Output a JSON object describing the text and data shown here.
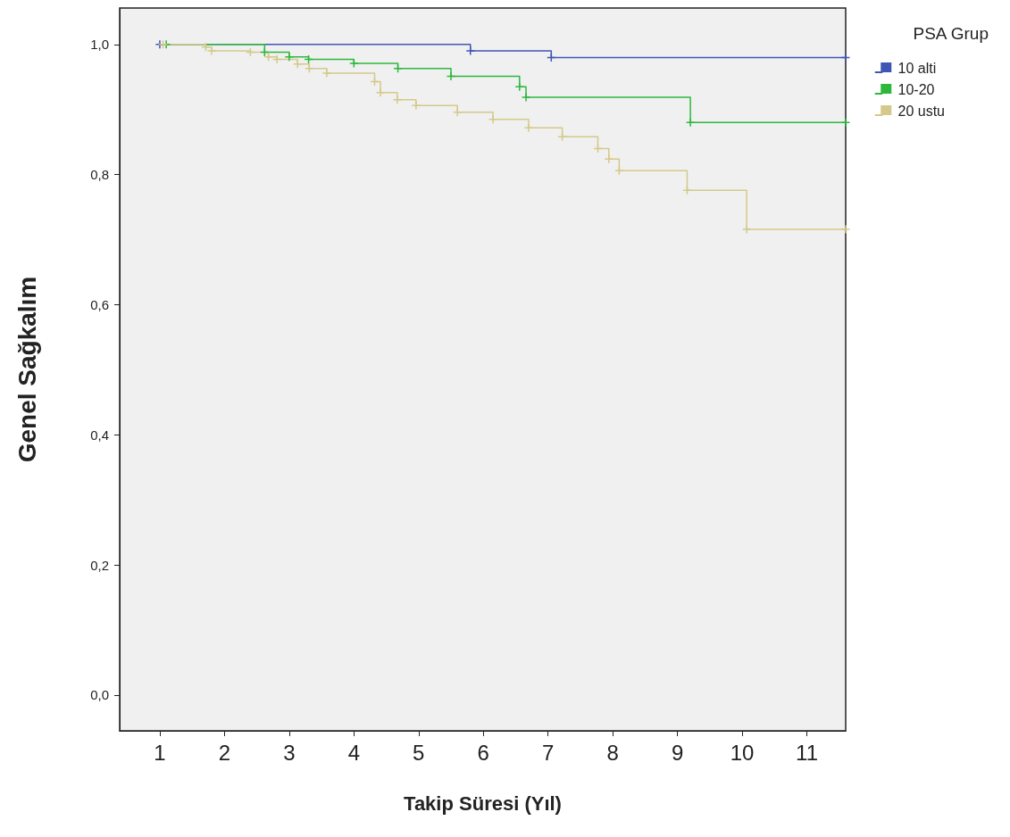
{
  "chart_data": {
    "type": "step",
    "xlabel": "Takip Süresi (Yıl)",
    "ylabel": "Genel Sağkalım",
    "legend_title": "PSA Grup",
    "legend": "top right",
    "grid": false,
    "marker": "cross",
    "xlim": [
      0.38,
      11.6
    ],
    "xticks": [
      1,
      2,
      3,
      4,
      5,
      6,
      7,
      8,
      9,
      10,
      11
    ],
    "ylim": [
      -0.055,
      1.056
    ],
    "yticks": [
      {
        "value": 0,
        "label": "0,0"
      },
      {
        "value": 0.2,
        "label": "0,2"
      },
      {
        "value": 0.4,
        "label": "0,4"
      },
      {
        "value": 0.6,
        "label": "0,6"
      },
      {
        "value": 0.8,
        "label": "0,8"
      },
      {
        "value": 1,
        "label": "1,0"
      }
    ],
    "series": [
      {
        "name": "10 alti",
        "color": "#4056b4",
        "x": [
          1,
          5.8,
          7.05,
          11.6
        ],
        "values": [
          1,
          0.99,
          0.98,
          0.98
        ]
      },
      {
        "name": "10-20",
        "color": "#2db83d",
        "x": [
          1.1,
          2.62,
          3.0,
          3.3,
          4.0,
          4.68,
          5.5,
          6.56,
          6.66,
          9.2,
          11.6
        ],
        "values": [
          1,
          0.988,
          0.981,
          0.977,
          0.971,
          0.963,
          0.951,
          0.935,
          0.919,
          0.88,
          0.88
        ]
      },
      {
        "name": "20 ustu",
        "color": "#d4c98a",
        "x": [
          1.05,
          1.71,
          1.8,
          2.4,
          2.68,
          2.81,
          3.13,
          3.31,
          3.58,
          4.32,
          4.41,
          4.67,
          4.96,
          5.6,
          6.15,
          6.7,
          7.22,
          7.77,
          7.94,
          8.1,
          9.15,
          10.07,
          11.6
        ],
        "values": [
          1,
          0.996,
          0.99,
          0.988,
          0.981,
          0.977,
          0.97,
          0.963,
          0.956,
          0.943,
          0.926,
          0.915,
          0.906,
          0.896,
          0.885,
          0.872,
          0.858,
          0.84,
          0.824,
          0.806,
          0.776,
          0.716,
          0.716
        ]
      }
    ]
  }
}
